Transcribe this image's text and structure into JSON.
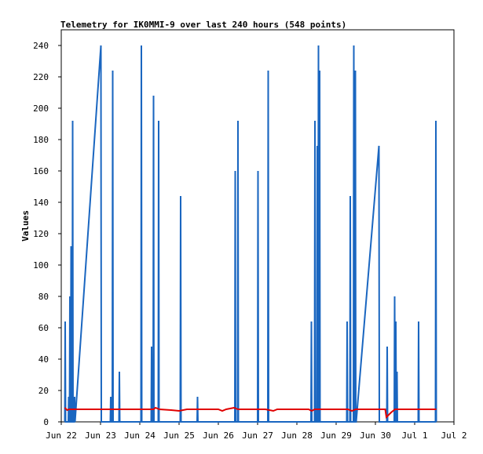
{
  "chart_data": {
    "type": "line",
    "title": "Telemetry for IK0MMI-9 over last 240 hours (548 points)",
    "xlabel": "",
    "ylabel": "Values",
    "xlim": [
      "Jun 22",
      "Jul 2"
    ],
    "ylim": [
      0,
      250
    ],
    "x_ticks": [
      "Jun 22",
      "Jun 23",
      "Jun 24",
      "Jun 25",
      "Jun 26",
      "Jun 27",
      "Jun 28",
      "Jun 29",
      "Jun 30",
      "Jul 1",
      "Jul 2"
    ],
    "y_ticks": [
      0,
      20,
      40,
      60,
      80,
      100,
      120,
      140,
      160,
      180,
      200,
      220,
      240
    ],
    "grid": false,
    "legend": "none",
    "x_unit": "days since Jun 22 00:00",
    "series": [
      {
        "color": "#1a66c0",
        "points": [
          [
            0.09,
            0
          ],
          [
            0.1,
            64
          ],
          [
            0.11,
            0
          ],
          [
            0.18,
            0
          ],
          [
            0.19,
            16
          ],
          [
            0.2,
            0
          ],
          [
            0.21,
            0
          ],
          [
            0.22,
            80
          ],
          [
            0.23,
            0
          ],
          [
            0.24,
            0
          ],
          [
            0.25,
            112
          ],
          [
            0.26,
            0
          ],
          [
            0.28,
            0
          ],
          [
            0.29,
            192
          ],
          [
            0.3,
            0
          ],
          [
            0.33,
            0
          ],
          [
            0.34,
            16
          ],
          [
            0.35,
            0
          ],
          [
            1.01,
            240
          ],
          [
            1.02,
            0
          ],
          [
            1.25,
            0
          ],
          [
            1.26,
            16
          ],
          [
            1.27,
            0
          ],
          [
            1.3,
            0
          ],
          [
            1.31,
            224
          ],
          [
            1.32,
            0
          ],
          [
            1.47,
            0
          ],
          [
            1.48,
            32
          ],
          [
            1.49,
            0
          ],
          [
            1.55,
            0
          ],
          [
            1.56,
            0
          ],
          [
            2.03,
            0
          ],
          [
            2.04,
            240
          ],
          [
            2.05,
            0
          ],
          [
            2.29,
            0
          ],
          [
            2.3,
            48
          ],
          [
            2.31,
            0
          ],
          [
            2.34,
            0
          ],
          [
            2.35,
            208
          ],
          [
            2.36,
            0
          ],
          [
            2.47,
            0
          ],
          [
            2.48,
            192
          ],
          [
            2.49,
            0
          ],
          [
            3.03,
            0
          ],
          [
            3.04,
            144
          ],
          [
            3.05,
            0
          ],
          [
            3.46,
            0
          ],
          [
            3.47,
            16
          ],
          [
            3.48,
            0
          ],
          [
            4.42,
            0
          ],
          [
            4.43,
            160
          ],
          [
            4.44,
            0
          ],
          [
            4.49,
            0
          ],
          [
            4.5,
            192
          ],
          [
            4.51,
            0
          ],
          [
            5.0,
            0
          ],
          [
            5.01,
            160
          ],
          [
            5.02,
            0
          ],
          [
            5.26,
            0
          ],
          [
            5.27,
            224
          ],
          [
            5.28,
            0
          ],
          [
            6.36,
            0
          ],
          [
            6.37,
            64
          ],
          [
            6.38,
            0
          ],
          [
            6.45,
            0
          ],
          [
            6.46,
            192
          ],
          [
            6.47,
            0
          ],
          [
            6.51,
            0
          ],
          [
            6.52,
            176
          ],
          [
            6.53,
            0
          ],
          [
            6.54,
            0
          ],
          [
            6.55,
            240
          ],
          [
            6.56,
            0
          ],
          [
            6.57,
            0
          ],
          [
            6.58,
            224
          ],
          [
            6.59,
            0
          ],
          [
            7.27,
            0
          ],
          [
            7.28,
            64
          ],
          [
            7.29,
            0
          ],
          [
            7.35,
            0
          ],
          [
            7.36,
            144
          ],
          [
            7.37,
            0
          ],
          [
            7.44,
            0
          ],
          [
            7.45,
            240
          ],
          [
            7.46,
            0
          ],
          [
            7.48,
            0
          ],
          [
            7.49,
            224
          ],
          [
            7.5,
            0
          ],
          [
            7.51,
            0
          ],
          [
            8.09,
            176
          ],
          [
            8.1,
            0
          ],
          [
            8.29,
            0
          ],
          [
            8.3,
            48
          ],
          [
            8.31,
            0
          ],
          [
            8.48,
            0
          ],
          [
            8.49,
            80
          ],
          [
            8.5,
            0
          ],
          [
            8.51,
            0
          ],
          [
            8.52,
            64
          ],
          [
            8.53,
            0
          ],
          [
            8.54,
            0
          ],
          [
            8.55,
            32
          ],
          [
            8.56,
            0
          ],
          [
            9.09,
            0
          ],
          [
            9.1,
            64
          ],
          [
            9.11,
            0
          ],
          [
            9.53,
            0
          ],
          [
            9.54,
            192
          ],
          [
            9.55,
            0
          ]
        ]
      },
      {
        "color": "#e00000",
        "points": [
          [
            0.09,
            9
          ],
          [
            0.15,
            7.5
          ],
          [
            0.2,
            8
          ],
          [
            0.6,
            8
          ],
          [
            1.0,
            8
          ],
          [
            1.5,
            8
          ],
          [
            2.0,
            8
          ],
          [
            2.35,
            8
          ],
          [
            2.4,
            9
          ],
          [
            2.5,
            8
          ],
          [
            2.8,
            7.5
          ],
          [
            3.0,
            7
          ],
          [
            3.2,
            8
          ],
          [
            3.6,
            8
          ],
          [
            4.0,
            8
          ],
          [
            4.1,
            7
          ],
          [
            4.2,
            8
          ],
          [
            4.3,
            8.5
          ],
          [
            4.4,
            9
          ],
          [
            4.5,
            8
          ],
          [
            4.8,
            8
          ],
          [
            5.0,
            8
          ],
          [
            5.2,
            8
          ],
          [
            5.4,
            7
          ],
          [
            5.5,
            8
          ],
          [
            6.0,
            8
          ],
          [
            6.3,
            8
          ],
          [
            6.38,
            7
          ],
          [
            6.45,
            8
          ],
          [
            7.0,
            8
          ],
          [
            7.3,
            8
          ],
          [
            7.4,
            7
          ],
          [
            7.5,
            8
          ],
          [
            8.0,
            8
          ],
          [
            8.25,
            8
          ],
          [
            8.28,
            3
          ],
          [
            8.4,
            6
          ],
          [
            8.5,
            8
          ],
          [
            8.7,
            8
          ],
          [
            9.0,
            8
          ],
          [
            9.3,
            8
          ],
          [
            9.55,
            8
          ]
        ]
      }
    ]
  }
}
